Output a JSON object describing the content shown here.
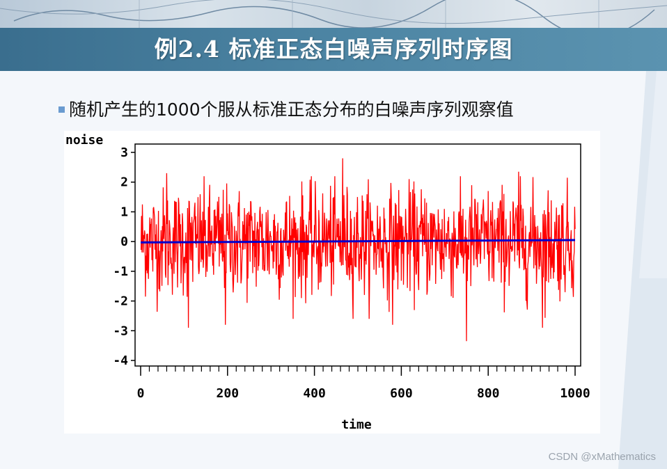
{
  "slide": {
    "title": "例2.4 标准正态白噪声序列时序图",
    "bullet": "随机产生的1000个服从标准正态分布的白噪声序列观察值",
    "watermark": "CSDN @xMathematics"
  },
  "colors": {
    "series": "#ff0000",
    "mean_line": "#0000cc",
    "title_bar": "#3a6e8e",
    "bullet_marker": "#6a9bd0"
  },
  "chart_data": {
    "type": "line",
    "title": "",
    "xlabel": "time",
    "ylabel": "noise",
    "xlim": [
      0,
      1000
    ],
    "ylim": [
      -4,
      3
    ],
    "x_ticks": [
      0,
      200,
      400,
      600,
      800,
      1000
    ],
    "x_tick_labels": [
      "0",
      "200",
      "400",
      "600",
      "800",
      "1000"
    ],
    "y_ticks": [
      3,
      2,
      1,
      0,
      -1,
      -2,
      -3,
      -4
    ],
    "y_tick_labels": [
      "3",
      "2",
      "1",
      "0",
      "-1",
      "-2",
      "-3",
      "-4"
    ],
    "grid": false,
    "legend": "none",
    "series": [
      {
        "n": 1000,
        "x_start": 1,
        "distribution": "standard normal white noise",
        "highlighted_values": [
          {
            "x": 60,
            "y": 2.3
          },
          {
            "x": 110,
            "y": -2.9
          },
          {
            "x": 195,
            "y": -2.8
          },
          {
            "x": 465,
            "y": 2.8
          },
          {
            "x": 580,
            "y": -2.8
          },
          {
            "x": 750,
            "y": -3.35
          },
          {
            "x": 870,
            "y": 2.35
          },
          {
            "x": 925,
            "y": -2.9
          }
        ]
      }
    ],
    "reference_lines": [
      {
        "type": "trend",
        "x": [
          0,
          1000
        ],
        "y": [
          -0.03,
          0.05
        ]
      }
    ]
  }
}
